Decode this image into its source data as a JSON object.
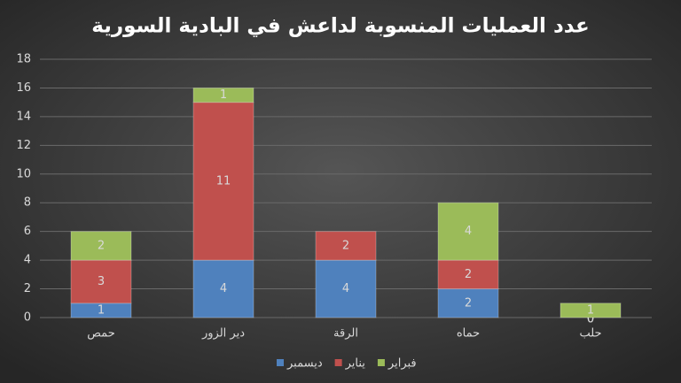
{
  "chart_data": {
    "type": "stacked_bar",
    "title": "عدد العمليات المنسوبة لداعش في البادية السورية",
    "categories": [
      "حمص",
      "دير الزور",
      "الرقة",
      "حماه",
      "حلب"
    ],
    "series": [
      {
        "name": "ديسمبر",
        "color": "#4f81bd",
        "values": [
          1,
          4,
          4,
          2,
          0
        ]
      },
      {
        "name": "يناير",
        "color": "#c0504d",
        "values": [
          3,
          11,
          2,
          2,
          0
        ]
      },
      {
        "name": "فبراير",
        "color": "#9bbb59",
        "values": [
          2,
          1,
          null,
          4,
          1
        ]
      }
    ],
    "ylim": [
      0,
      18
    ],
    "yticks": [
      0,
      2,
      4,
      6,
      8,
      10,
      12,
      14,
      16,
      18
    ],
    "grid": true,
    "legend": "bottom"
  }
}
